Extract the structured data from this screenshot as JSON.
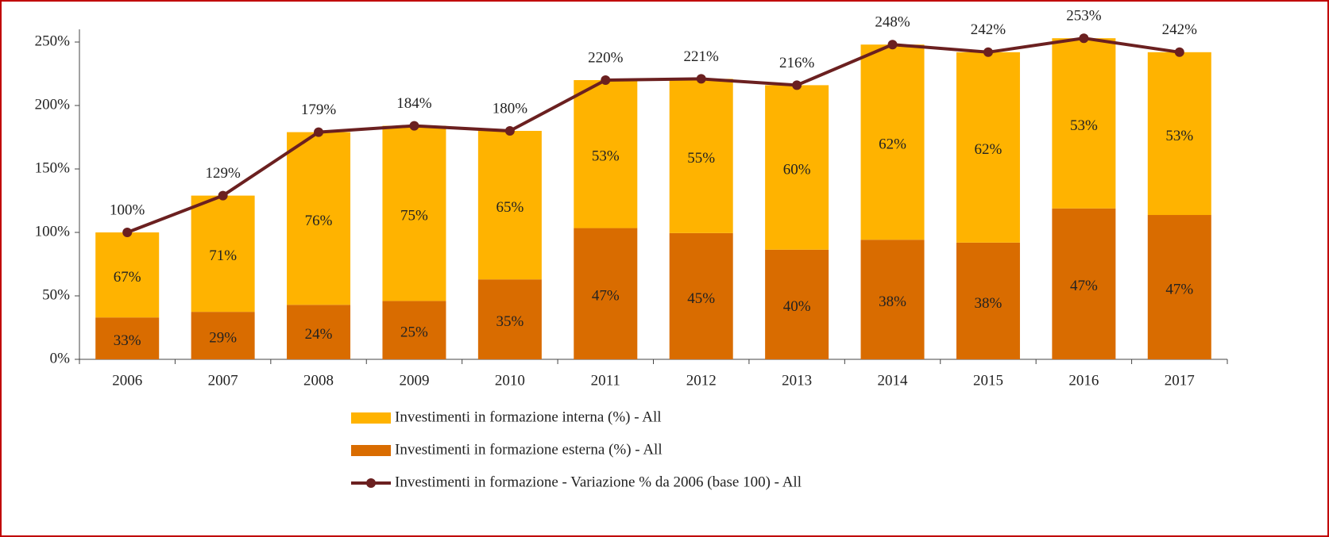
{
  "chart_data": {
    "type": "bar",
    "categories": [
      "2006",
      "2007",
      "2008",
      "2009",
      "2010",
      "2011",
      "2012",
      "2013",
      "2014",
      "2015",
      "2016",
      "2017"
    ],
    "series": [
      {
        "name": "Investimenti in formazione esterna (%) - All",
        "type": "bar",
        "color": "#d96c00",
        "values": [
          33,
          29,
          24,
          25,
          35,
          47,
          45,
          40,
          38,
          38,
          47,
          47
        ],
        "value_labels": [
          "33%",
          "29%",
          "24%",
          "25%",
          "35%",
          "47%",
          "45%",
          "40%",
          "38%",
          "38%",
          "47%",
          "47%"
        ]
      },
      {
        "name": "Investimenti in formazione interna (%) - All",
        "type": "bar",
        "color": "#ffb300",
        "values": [
          67,
          71,
          76,
          75,
          65,
          53,
          55,
          60,
          62,
          62,
          53,
          53
        ],
        "value_labels": [
          "67%",
          "71%",
          "76%",
          "75%",
          "65%",
          "53%",
          "55%",
          "60%",
          "62%",
          "62%",
          "53%",
          "53%"
        ]
      },
      {
        "name": "Investimenti in formazione - Variazione % da 2006 (base 100) - All",
        "type": "line",
        "color": "#6b2020",
        "values": [
          100,
          129,
          179,
          184,
          180,
          220,
          221,
          216,
          248,
          242,
          253,
          242
        ],
        "value_labels": [
          "100%",
          "129%",
          "179%",
          "184%",
          "180%",
          "220%",
          "221%",
          "216%",
          "248%",
          "242%",
          "253%",
          "242%"
        ]
      }
    ],
    "ylim": [
      0,
      260
    ],
    "yticks": [
      {
        "value": 0,
        "label": "0%"
      },
      {
        "value": 50,
        "label": "50%"
      },
      {
        "value": 100,
        "label": "100%"
      },
      {
        "value": 150,
        "label": "150%"
      },
      {
        "value": 200,
        "label": "200%"
      },
      {
        "value": 250,
        "label": "250%"
      }
    ],
    "grid": false
  }
}
